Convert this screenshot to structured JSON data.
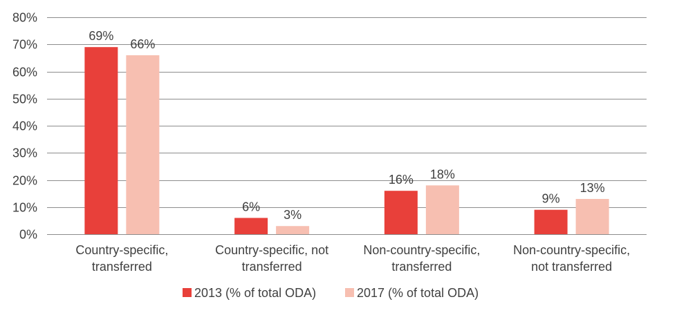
{
  "chart_data": {
    "type": "bar",
    "title": "",
    "xlabel": "",
    "ylabel": "",
    "ylim": [
      0,
      80
    ],
    "y_tick_values": [
      0,
      10,
      20,
      30,
      40,
      50,
      60,
      70,
      80
    ],
    "y_tick_labels": [
      "0%",
      "10%",
      "20%",
      "30%",
      "40%",
      "50%",
      "60%",
      "70%",
      "80%"
    ],
    "grid": true,
    "legend_position": "bottom-center",
    "categories": [
      [
        "Country-specific,",
        "transferred"
      ],
      [
        "Country-specific, not",
        "transferred"
      ],
      [
        "Non-country-specific,",
        "transferred"
      ],
      [
        "Non-country-specific,",
        "not transferred"
      ]
    ],
    "series": [
      {
        "name": "2013 (% of total ODA)",
        "color": "#e8403a",
        "values": [
          69,
          6,
          16,
          9
        ],
        "labels": [
          "69%",
          "6%",
          "16%",
          "9%"
        ]
      },
      {
        "name": "2017 (% of total ODA)",
        "color": "#f7bfb1",
        "values": [
          66,
          3,
          18,
          13
        ],
        "labels": [
          "66%",
          "3%",
          "18%",
          "13%"
        ]
      }
    ]
  }
}
